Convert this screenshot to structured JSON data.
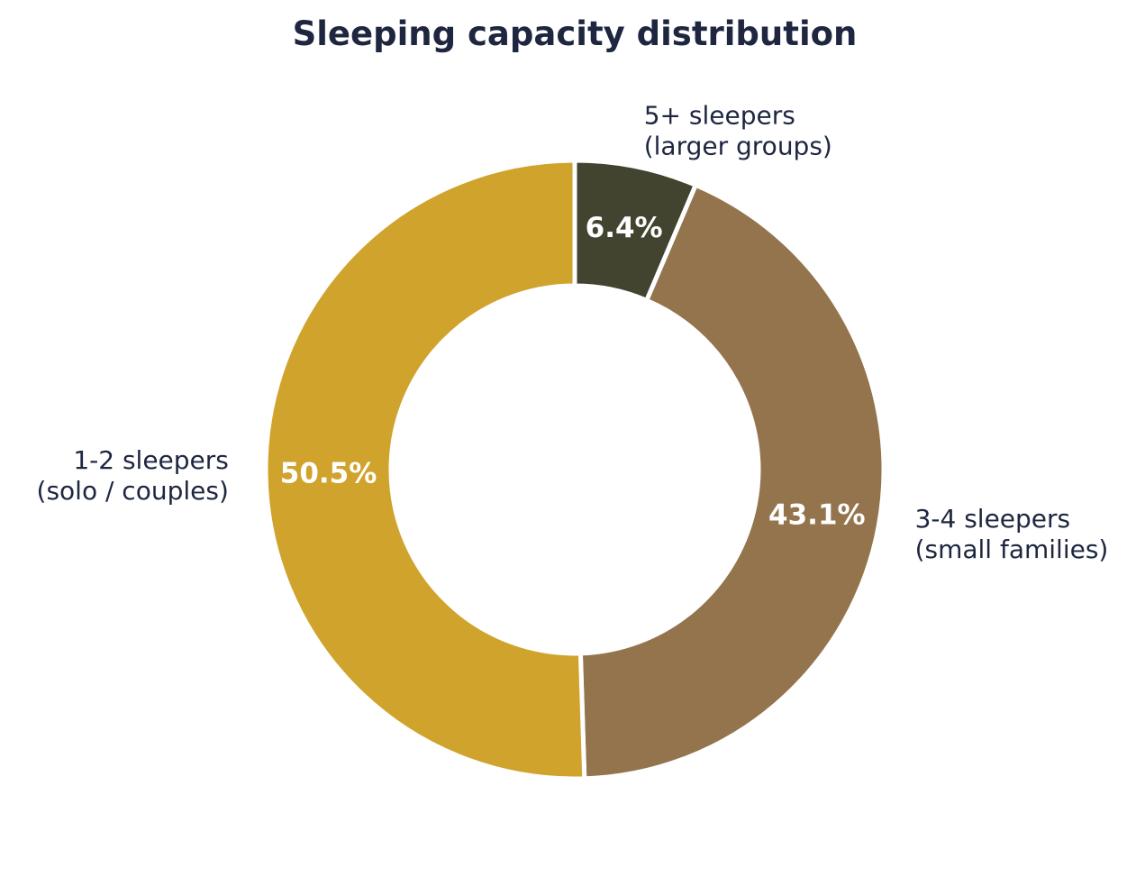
{
  "chart_data": {
    "type": "pie",
    "style": "donut",
    "title": "Sleeping capacity distribution",
    "slices": [
      {
        "label_lines": [
          "5+ sleepers",
          "(larger groups)"
        ],
        "value": 6.4,
        "value_label": "6.4%",
        "color": "#424430"
      },
      {
        "label_lines": [
          "3-4 sleepers",
          "(small families)"
        ],
        "value": 43.1,
        "value_label": "43.1%",
        "color": "#94744d"
      },
      {
        "label_lines": [
          "1-2 sleepers",
          "(solo / couples)"
        ],
        "value": 50.5,
        "value_label": "50.5%",
        "color": "#d0a32c"
      }
    ],
    "start_angle": "12 o'clock",
    "direction": "clockwise",
    "legend": "none"
  }
}
